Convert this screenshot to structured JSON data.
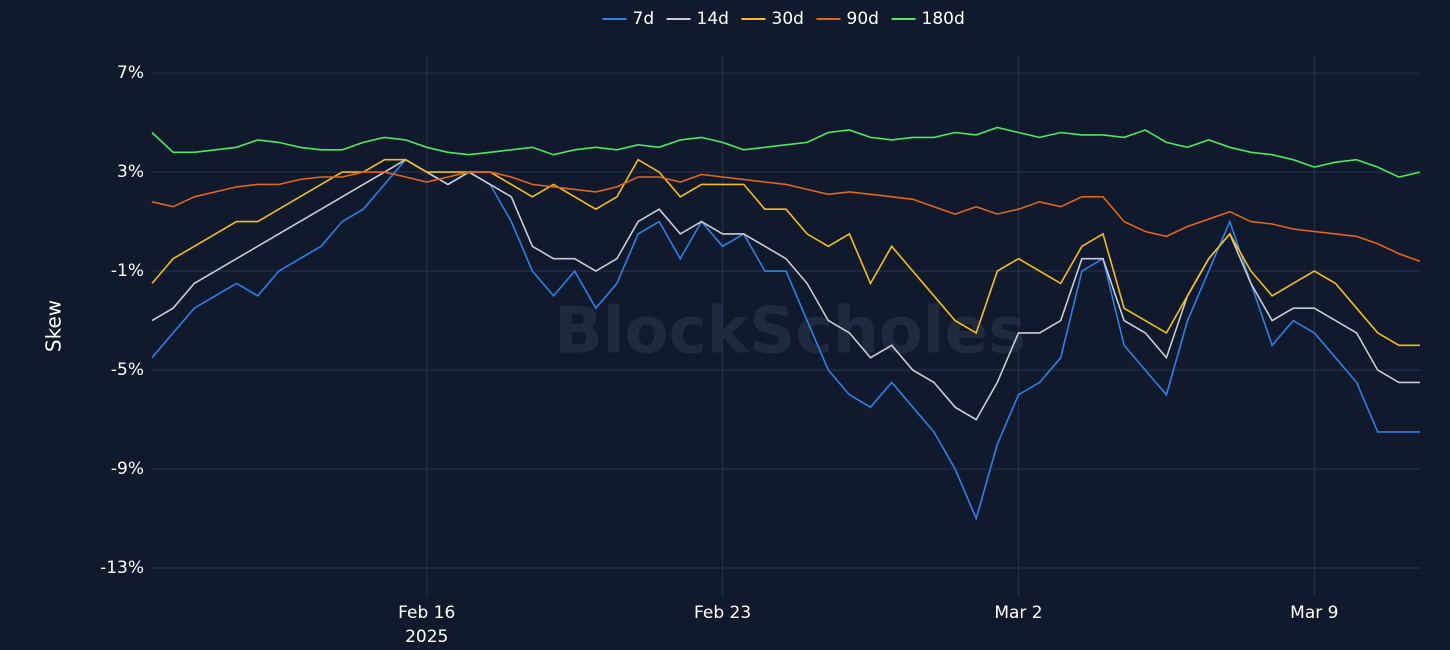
{
  "chart_data": {
    "type": "line",
    "y_label": "Skew",
    "watermark": "BlockScholes",
    "x": [
      "2025-02-09T12:00",
      "2025-02-10T00:00",
      "2025-02-10T12:00",
      "2025-02-11T00:00",
      "2025-02-11T12:00",
      "2025-02-12T00:00",
      "2025-02-12T12:00",
      "2025-02-13T00:00",
      "2025-02-13T12:00",
      "2025-02-14T00:00",
      "2025-02-14T12:00",
      "2025-02-15T00:00",
      "2025-02-15T12:00",
      "2025-02-16T00:00",
      "2025-02-16T12:00",
      "2025-02-17T00:00",
      "2025-02-17T12:00",
      "2025-02-18T00:00",
      "2025-02-18T12:00",
      "2025-02-19T00:00",
      "2025-02-19T12:00",
      "2025-02-20T00:00",
      "2025-02-20T12:00",
      "2025-02-21T00:00",
      "2025-02-21T12:00",
      "2025-02-22T00:00",
      "2025-02-22T12:00",
      "2025-02-23T00:00",
      "2025-02-23T12:00",
      "2025-02-24T00:00",
      "2025-02-24T12:00",
      "2025-02-25T00:00",
      "2025-02-25T12:00",
      "2025-02-26T00:00",
      "2025-02-26T12:00",
      "2025-02-27T00:00",
      "2025-02-27T12:00",
      "2025-02-28T00:00",
      "2025-02-28T12:00",
      "2025-03-01T00:00",
      "2025-03-01T12:00",
      "2025-03-02T00:00",
      "2025-03-02T12:00",
      "2025-03-03T00:00",
      "2025-03-03T12:00",
      "2025-03-04T00:00",
      "2025-03-04T12:00",
      "2025-03-05T00:00",
      "2025-03-05T12:00",
      "2025-03-06T00:00",
      "2025-03-06T12:00",
      "2025-03-07T00:00",
      "2025-03-07T12:00",
      "2025-03-08T00:00",
      "2025-03-08T12:00",
      "2025-03-09T00:00",
      "2025-03-09T12:00",
      "2025-03-10T00:00",
      "2025-03-10T12:00",
      "2025-03-11T00:00",
      "2025-03-11T12:00"
    ],
    "series": [
      {
        "name": "7d",
        "color": "#2f7fe6",
        "values": [
          -4.5,
          -3.5,
          -2.5,
          -2,
          -1.5,
          -2,
          -1,
          -0.5,
          0,
          1,
          1.5,
          2.5,
          3.5,
          3,
          2.5,
          3,
          2.5,
          1,
          -1,
          -2,
          -1,
          -2.5,
          -1.5,
          0.5,
          1,
          -0.5,
          1,
          0,
          0.5,
          -1,
          -1,
          -3,
          -5,
          -6,
          -6.5,
          -5.5,
          -6.5,
          -7.5,
          -9,
          -11,
          -8,
          -6,
          -5.5,
          -4.5,
          -1,
          -0.5,
          -4,
          -5,
          -6,
          -3,
          -1,
          1,
          -1.5,
          -4,
          -3,
          -3.5,
          -4.5,
          -5.5,
          -7.5,
          -7.5,
          -7.5
        ]
      },
      {
        "name": "14d",
        "color": "#c9ccd3",
        "values": [
          -3,
          -2.5,
          -1.5,
          -1,
          -0.5,
          0,
          0.5,
          1,
          1.5,
          2,
          2.5,
          3,
          3.5,
          3,
          2.5,
          3,
          2.5,
          2,
          0,
          -0.5,
          -0.5,
          -1,
          -0.5,
          1,
          1.5,
          0.5,
          1,
          0.5,
          0.5,
          0,
          -0.5,
          -1.5,
          -3,
          -3.5,
          -4.5,
          -4,
          -5,
          -5.5,
          -6.5,
          -7,
          -5.5,
          -3.5,
          -3.5,
          -3,
          -0.5,
          -0.5,
          -3,
          -3.5,
          -4.5,
          -2,
          -0.5,
          0.5,
          -1.5,
          -3,
          -2.5,
          -2.5,
          -3,
          -3.5,
          -5,
          -5.5,
          -5.5
        ]
      },
      {
        "name": "30d",
        "color": "#f2bd1d",
        "values": [
          -1.5,
          -0.5,
          0,
          0.5,
          1,
          1,
          1.5,
          2,
          2.5,
          3,
          3,
          3.5,
          3.5,
          3,
          3,
          3,
          3,
          2.5,
          2,
          2.5,
          2,
          1.5,
          2,
          3.5,
          3,
          2,
          2.5,
          2.5,
          2.5,
          1.5,
          1.5,
          0.5,
          0,
          0.5,
          -1.5,
          0,
          -1,
          -2,
          -3,
          -3.5,
          -1,
          -0.5,
          -1,
          -1.5,
          0,
          0.5,
          -2.5,
          -3,
          -3.5,
          -2,
          -0.5,
          0.5,
          -1,
          -2,
          -1.5,
          -1,
          -1.5,
          -2.5,
          -3.5,
          -4,
          -4
        ]
      },
      {
        "name": "90d",
        "color": "#e0661a",
        "values": [
          1.8,
          1.6,
          2,
          2.2,
          2.4,
          2.5,
          2.5,
          2.7,
          2.8,
          2.8,
          3,
          3,
          2.8,
          2.6,
          2.8,
          3,
          3,
          2.8,
          2.5,
          2.4,
          2.3,
          2.2,
          2.4,
          2.8,
          2.8,
          2.6,
          2.9,
          2.8,
          2.7,
          2.6,
          2.5,
          2.3,
          2.1,
          2.2,
          2.1,
          2,
          1.9,
          1.6,
          1.3,
          1.6,
          1.3,
          1.5,
          1.8,
          1.6,
          2,
          2,
          1,
          0.6,
          0.4,
          0.8,
          1.1,
          1.4,
          1,
          0.9,
          0.7,
          0.6,
          0.5,
          0.4,
          0.1,
          -0.3,
          -0.6
        ]
      },
      {
        "name": "180d",
        "color": "#4ee860",
        "values": [
          4.6,
          3.8,
          3.8,
          3.9,
          4,
          4.3,
          4.2,
          4,
          3.9,
          3.9,
          4.2,
          4.4,
          4.3,
          4,
          3.8,
          3.7,
          3.8,
          3.9,
          4,
          3.7,
          3.9,
          4,
          3.9,
          4.1,
          4,
          4.3,
          4.4,
          4.2,
          3.9,
          4,
          4.1,
          4.2,
          4.6,
          4.7,
          4.4,
          4.3,
          4.4,
          4.4,
          4.6,
          4.5,
          4.8,
          4.6,
          4.4,
          4.6,
          4.5,
          4.5,
          4.4,
          4.7,
          4.2,
          4,
          4.3,
          4,
          3.8,
          3.7,
          3.5,
          3.2,
          3.4,
          3.5,
          3.2,
          2.8,
          3
        ]
      }
    ],
    "xlim": [
      "2025-02-09T12:00",
      "2025-03-11T12:00"
    ],
    "xticks": [
      {
        "value": "2025-02-16T00:00",
        "label": "Feb 16"
      },
      {
        "value": "2025-02-23T00:00",
        "label": "Feb 23"
      },
      {
        "value": "2025-03-02T00:00",
        "label": "Mar 2"
      },
      {
        "value": "2025-03-09T00:00",
        "label": "Mar 9"
      }
    ],
    "x_year_label": "2025",
    "ylim": [
      -14.17,
      7.73
    ],
    "yticks": [
      {
        "value": 7,
        "label": "7%"
      },
      {
        "value": 3,
        "label": "3%"
      },
      {
        "value": -1,
        "label": "-1%"
      },
      {
        "value": -5,
        "label": "-5%"
      },
      {
        "value": -9,
        "label": "-9%"
      },
      {
        "value": -13,
        "label": "-13%"
      }
    ],
    "grid": true,
    "legend": "top"
  }
}
